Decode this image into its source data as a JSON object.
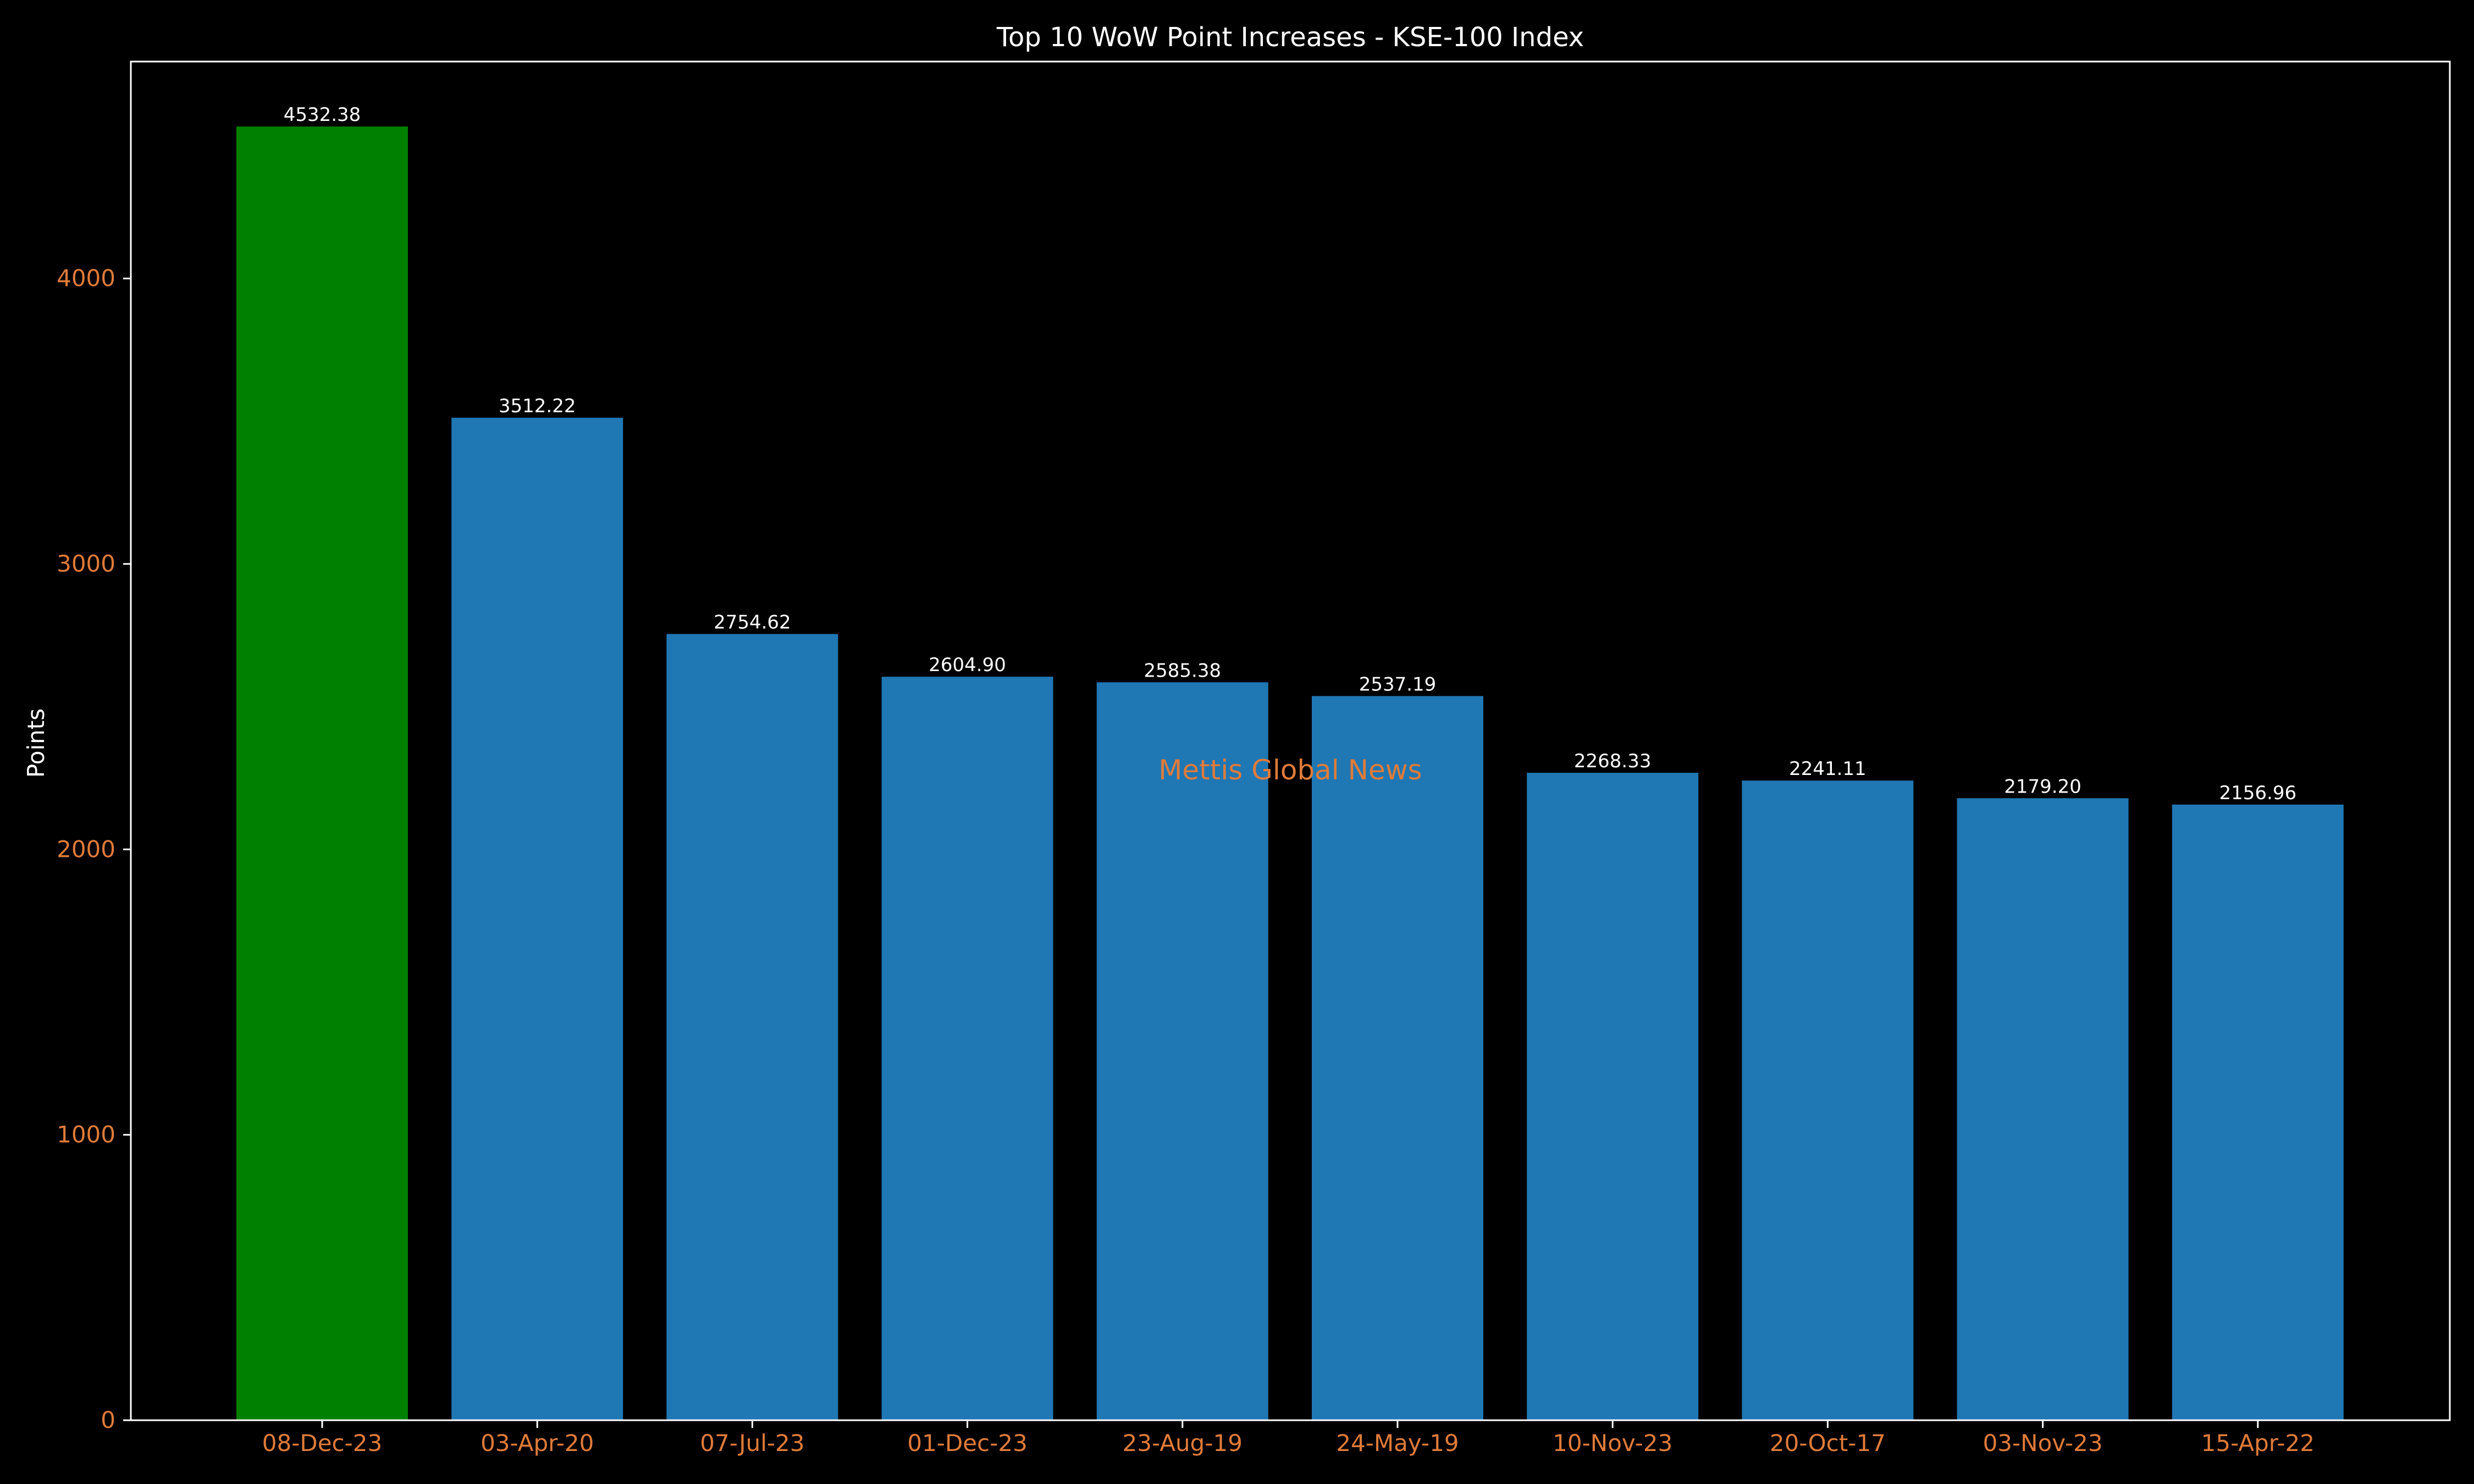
{
  "colors": {
    "background": "#000000",
    "axis": "#ffffff",
    "tick_label": "#e07b39",
    "highlight_bar": "#008000",
    "bar": "#1f77b4",
    "watermark": "#e07b39"
  },
  "chart_data": {
    "type": "bar",
    "title": "Top 10 WoW Point Increases - KSE-100 Index",
    "xlabel": "",
    "ylabel": "Points",
    "ylim": [
      0,
      4760
    ],
    "yticks": [
      0,
      1000,
      2000,
      3000,
      4000
    ],
    "grid": false,
    "categories": [
      "08-Dec-23",
      "03-Apr-20",
      "07-Jul-23",
      "01-Dec-23",
      "23-Aug-19",
      "24-May-19",
      "10-Nov-23",
      "20-Oct-17",
      "03-Nov-23",
      "15-Apr-22"
    ],
    "values": [
      4532.38,
      3512.22,
      2754.62,
      2604.9,
      2585.38,
      2537.19,
      2268.33,
      2241.11,
      2179.2,
      2156.96
    ],
    "value_labels": [
      "4532.38",
      "3512.22",
      "2754.62",
      "2604.90",
      "2585.38",
      "2537.19",
      "2268.33",
      "2241.11",
      "2179.20",
      "2156.96"
    ],
    "highlight_index": 0,
    "watermark": "Mettis Global News"
  }
}
